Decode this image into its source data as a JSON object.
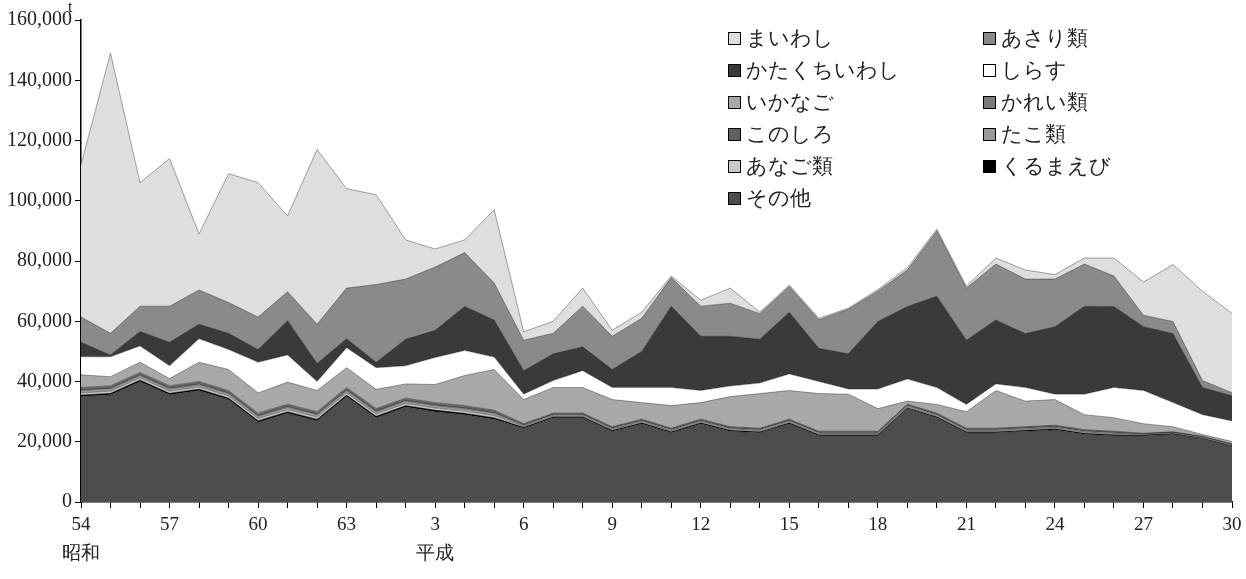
{
  "chart_data": {
    "type": "area",
    "stacked": true,
    "ylabel": "t",
    "legend": "top right",
    "grid": false,
    "categories": [
      "54\n昭和",
      null,
      null,
      "57",
      null,
      null,
      "60",
      null,
      null,
      "63",
      null,
      null,
      "3\n平成",
      null,
      null,
      "6",
      null,
      null,
      "9",
      null,
      null,
      "12",
      null,
      null,
      "15",
      null,
      null,
      "18",
      null,
      null,
      "21",
      null,
      null,
      "24",
      null,
      null,
      "27",
      null,
      null,
      "30"
    ],
    "ylim": [
      0,
      160000
    ],
    "yticks": [
      {
        "value": 0,
        "label": "0"
      },
      {
        "value": 20000,
        "label": "20,000"
      },
      {
        "value": 40000,
        "label": "40,000"
      },
      {
        "value": 60000,
        "label": "60,000"
      },
      {
        "value": 80000,
        "label": "80,000"
      },
      {
        "value": 100000,
        "label": "100,000"
      },
      {
        "value": 120000,
        "label": "120,000"
      },
      {
        "value": 140000,
        "label": "140,000"
      },
      {
        "value": 160000,
        "label": "160,000"
      }
    ],
    "series": [
      {
        "name": "その他",
        "color": "#4d4d4d",
        "values": [
          35000,
          35600,
          40000,
          35600,
          37000,
          34000,
          26500,
          29500,
          27000,
          35000,
          28000,
          31500,
          30000,
          29000,
          27500,
          24500,
          28000,
          28000,
          23500,
          26000,
          23000,
          26000,
          23500,
          23000,
          26000,
          22000,
          22000,
          22000,
          31000,
          28000,
          23000,
          23000,
          23500,
          24000,
          22500,
          22000,
          22000,
          22500,
          21000,
          18500
        ]
      },
      {
        "name": "くるまえび",
        "color": "#000000",
        "values": [
          500,
          500,
          500,
          500,
          500,
          500,
          500,
          500,
          500,
          500,
          500,
          500,
          500,
          500,
          500,
          300,
          300,
          300,
          300,
          300,
          300,
          300,
          300,
          300,
          300,
          300,
          300,
          300,
          300,
          300,
          300,
          300,
          300,
          300,
          300,
          300,
          200,
          200,
          200,
          200
        ]
      },
      {
        "name": "あなご類",
        "color": "#c8c8c8",
        "values": [
          700,
          700,
          700,
          700,
          700,
          700,
          700,
          700,
          700,
          700,
          700,
          700,
          700,
          700,
          700,
          300,
          300,
          300,
          300,
          300,
          300,
          300,
          300,
          300,
          300,
          300,
          300,
          300,
          300,
          300,
          300,
          300,
          300,
          300,
          300,
          300,
          200,
          200,
          200,
          200
        ]
      },
      {
        "name": "たこ類",
        "color": "#9a9a9a",
        "values": [
          800,
          800,
          800,
          800,
          800,
          800,
          800,
          800,
          800,
          800,
          800,
          800,
          800,
          800,
          800,
          400,
          400,
          400,
          400,
          400,
          400,
          400,
          400,
          400,
          400,
          400,
          400,
          400,
          400,
          400,
          400,
          400,
          400,
          400,
          400,
          400,
          200,
          200,
          200,
          200
        ]
      },
      {
        "name": "このしろ",
        "color": "#606060",
        "values": [
          500,
          500,
          500,
          500,
          500,
          500,
          500,
          500,
          500,
          500,
          500,
          500,
          500,
          500,
          500,
          300,
          300,
          300,
          300,
          300,
          300,
          300,
          300,
          300,
          300,
          300,
          300,
          300,
          300,
          300,
          300,
          300,
          300,
          300,
          300,
          300,
          100,
          100,
          100,
          100
        ]
      },
      {
        "name": "かれい類",
        "color": "#7a7a7a",
        "values": [
          500,
          500,
          500,
          500,
          500,
          500,
          500,
          500,
          500,
          500,
          500,
          500,
          500,
          500,
          500,
          200,
          200,
          200,
          200,
          200,
          200,
          200,
          200,
          200,
          200,
          200,
          200,
          200,
          200,
          200,
          200,
          200,
          200,
          200,
          200,
          200,
          100,
          100,
          100,
          100
        ]
      },
      {
        "name": "いかなご",
        "color": "#a8a8a8",
        "values": [
          4200,
          3000,
          3400,
          2400,
          6400,
          7000,
          6700,
          7300,
          7000,
          6600,
          6400,
          4700,
          6000,
          10000,
          13500,
          8000,
          8500,
          8500,
          9000,
          5500,
          7500,
          5500,
          10000,
          11500,
          9500,
          12500,
          12300,
          7500,
          1000,
          2900,
          5500,
          12500,
          8500,
          8500,
          5000,
          4500,
          3200,
          1700,
          600,
          800
        ]
      },
      {
        "name": "しらす",
        "color": "#ffffff",
        "values": [
          6000,
          6600,
          5400,
          4200,
          7800,
          6600,
          10200,
          9000,
          3000,
          6600,
          7200,
          6000,
          9000,
          8300,
          4100,
          1800,
          2300,
          5600,
          4000,
          5000,
          6000,
          4000,
          3500,
          3500,
          5500,
          4000,
          1700,
          6500,
          7300,
          5600,
          2400,
          2200,
          4500,
          1800,
          6800,
          10000,
          11000,
          8000,
          6600,
          6800
        ]
      },
      {
        "name": "かたくちいわし",
        "color": "#3a3a3a",
        "values": [
          4800,
          600,
          4800,
          7800,
          4800,
          5400,
          4200,
          11400,
          6000,
          3000,
          1800,
          8800,
          9000,
          14600,
          12300,
          7800,
          8900,
          7900,
          6000,
          12000,
          27000,
          18000,
          16500,
          14500,
          20500,
          11000,
          11700,
          22400,
          24100,
          30300,
          21300,
          21200,
          17900,
          22400,
          29200,
          26900,
          21200,
          22900,
          9000,
          8400
        ]
      },
      {
        "name": "あさり類",
        "color": "#8a8a8a",
        "values": [
          8400,
          7200,
          8400,
          12000,
          11400,
          10200,
          10800,
          9600,
          13000,
          16800,
          25800,
          20000,
          21000,
          17900,
          12300,
          10100,
          6800,
          13500,
          11000,
          11000,
          9500,
          10000,
          11000,
          8500,
          8500,
          9500,
          14800,
          10100,
          12100,
          21700,
          17300,
          18600,
          18100,
          15800,
          14000,
          10100,
          3800,
          4000,
          2300,
          1000
        ]
      },
      {
        "name": "まいわし",
        "color": "#dedede",
        "values": [
          50600,
          93000,
          41000,
          49000,
          18600,
          42800,
          44600,
          25200,
          58000,
          33000,
          29800,
          13000,
          6000,
          4200,
          24300,
          2800,
          4000,
          6000,
          2000,
          2000,
          500,
          2000,
          5000,
          500,
          500,
          500,
          300,
          500,
          800,
          600,
          600,
          2000,
          3000,
          1500,
          2000,
          6000,
          11000,
          18900,
          29700,
          26300
        ]
      }
    ]
  }
}
